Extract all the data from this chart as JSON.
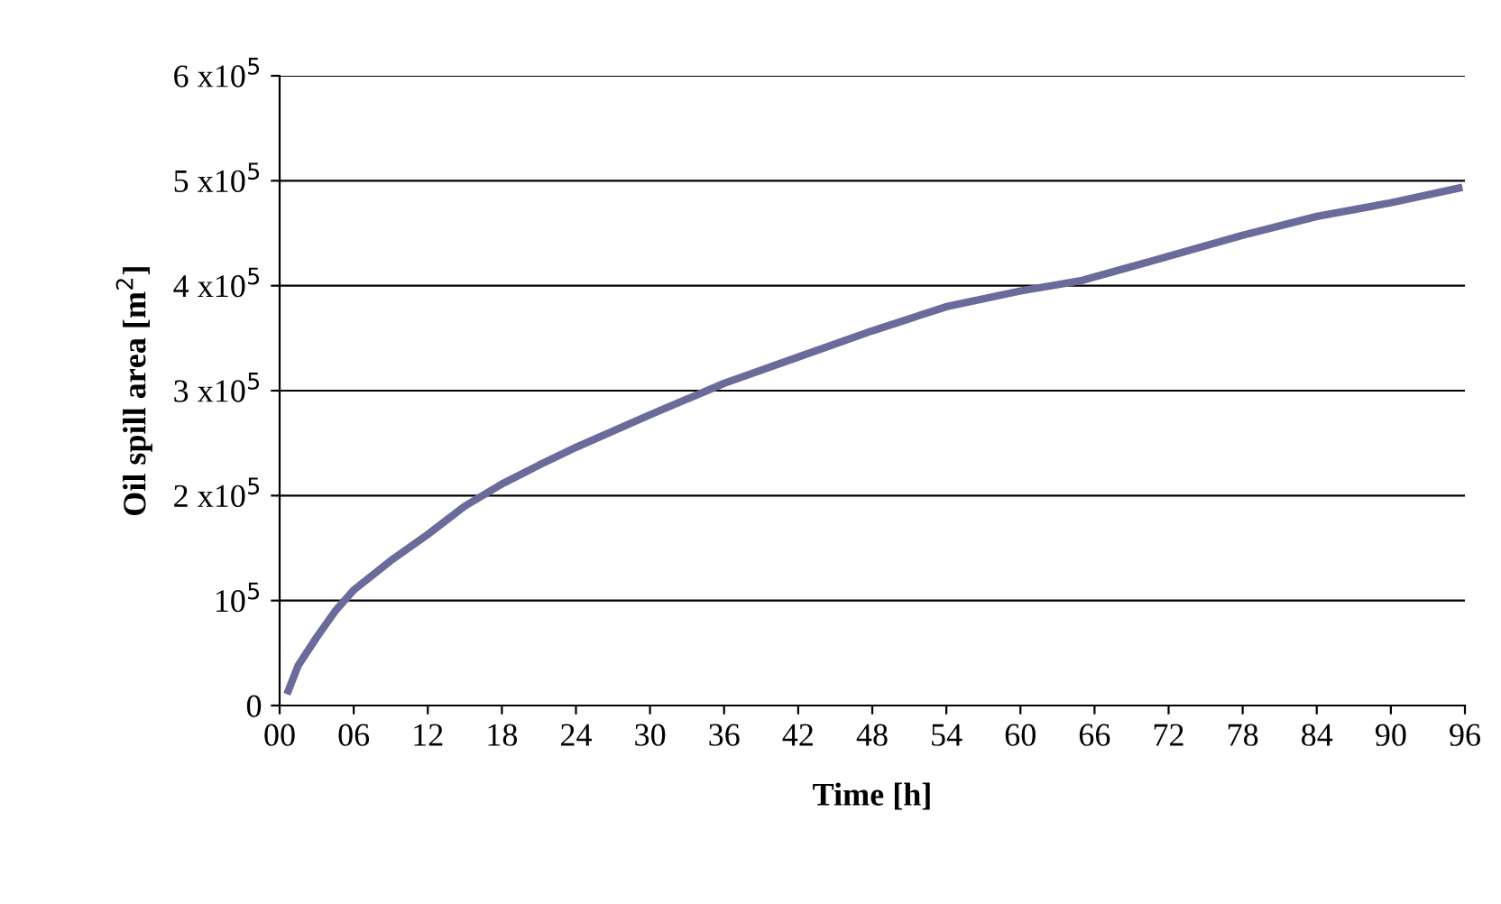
{
  "chart_data": {
    "type": "line",
    "xlabel": "Time [h]",
    "ylabel": "Oil spill area [m$^{2}$]",
    "x": [
      0.7,
      1.5,
      3,
      4.5,
      6,
      9,
      12,
      15,
      18,
      21,
      24,
      30,
      36,
      42,
      48,
      54,
      60,
      65,
      72,
      78,
      84,
      90,
      95.5
    ],
    "series": [
      {
        "color": "#6b6b9b",
        "values": [
          14000,
          38000,
          65000,
          90000,
          110000,
          138000,
          163000,
          190000,
          211000,
          229000,
          246000,
          277000,
          307000,
          332000,
          357000,
          380000,
          395000,
          405000,
          428000,
          448000,
          466000,
          479000,
          493000
        ]
      }
    ],
    "xlim": [
      0,
      96
    ],
    "xticks": [
      {
        "value": 0,
        "label": "00"
      },
      {
        "value": 6,
        "label": "06"
      },
      12,
      18,
      24,
      30,
      36,
      42,
      48,
      54,
      60,
      66,
      72,
      78,
      84,
      90,
      96
    ],
    "ylim": [
      0,
      600000
    ],
    "yticks": [
      {
        "value": 0,
        "label": "0"
      },
      {
        "value": 100000,
        "label": "10$^{5}$"
      },
      {
        "value": 200000,
        "label": "2 x10$^{5}$"
      },
      {
        "value": 300000,
        "label": "3 x10$^{5}$"
      },
      {
        "value": 400000,
        "label": "4 x10$^{5}$"
      },
      {
        "value": 500000,
        "label": "5 x10$^{5}$"
      },
      {
        "value": 600000,
        "label": "6 x10$^{5}$"
      }
    ],
    "grid": "y",
    "legend": false,
    "marker": "none",
    "line_style": "solid"
  }
}
